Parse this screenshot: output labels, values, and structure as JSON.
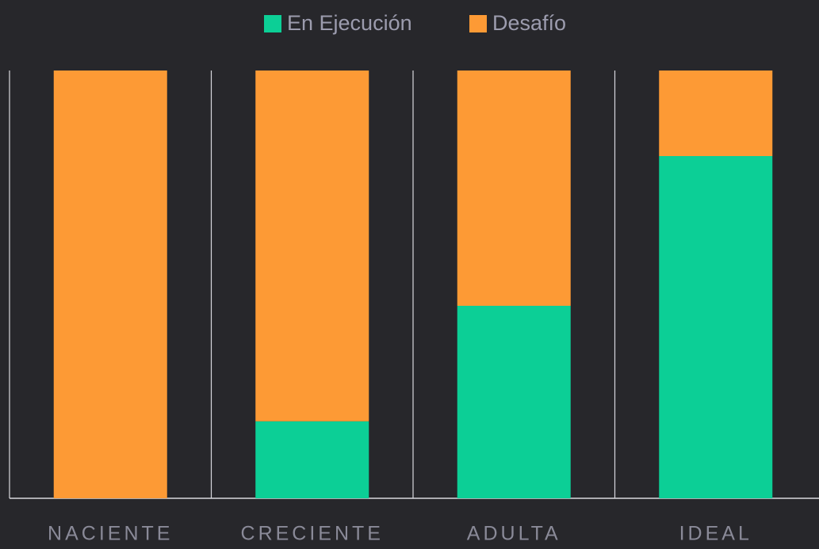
{
  "chart_data": {
    "type": "stacked_bar",
    "categories": [
      "NACIENTE",
      "CRECIENTE",
      "ADULTA",
      "IDEAL"
    ],
    "series": [
      {
        "name": "En Ejecución",
        "color": "#0ccf96",
        "values": [
          0,
          18,
          45,
          80
        ]
      },
      {
        "name": "Desafío",
        "color": "#fd9a35",
        "values": [
          100,
          82,
          55,
          20
        ]
      }
    ],
    "ylim": [
      0,
      100
    ],
    "legend": "top"
  }
}
